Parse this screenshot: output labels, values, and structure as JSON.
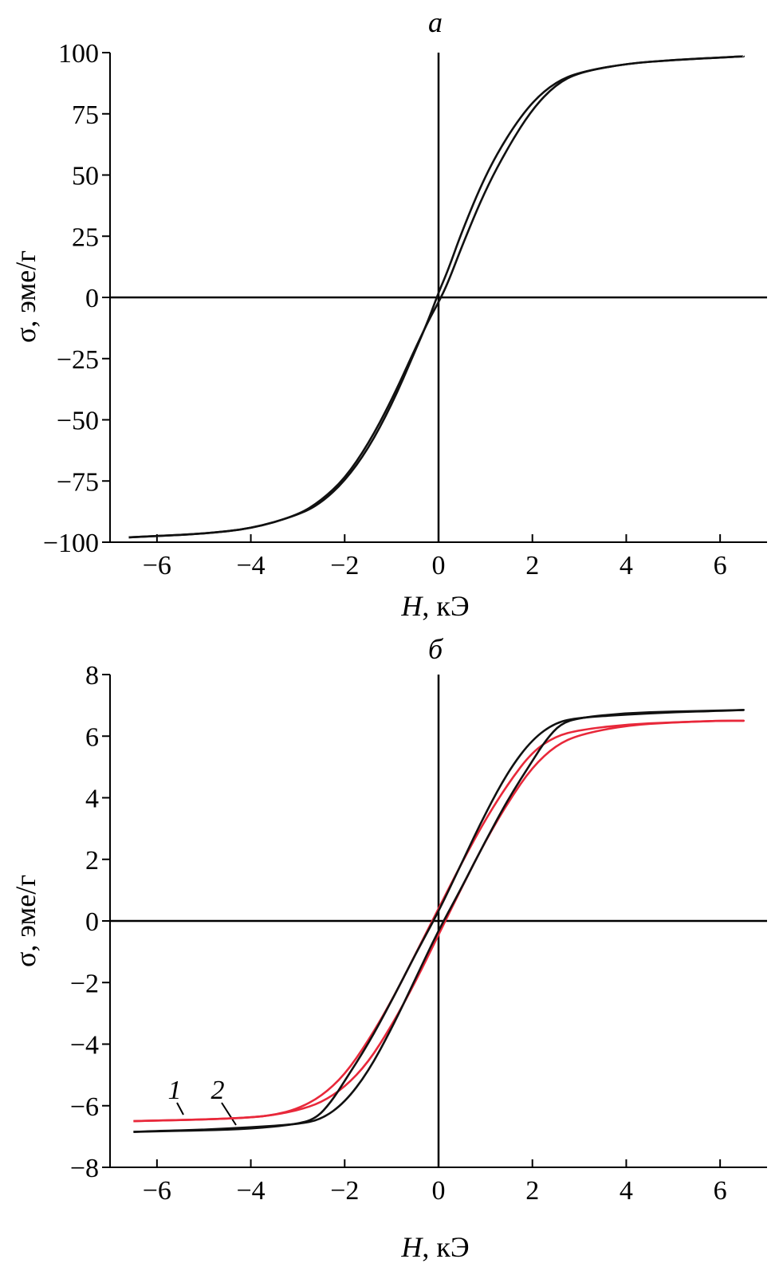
{
  "chart_data": [
    {
      "type": "line",
      "panel_label": "a",
      "xlabel_var": "H",
      "xlabel_unit": ", кЭ",
      "ylabel": "σ, эме/г",
      "xlim": [
        -7,
        7
      ],
      "ylim": [
        -100,
        100
      ],
      "xticks": [
        -6,
        -4,
        -2,
        0,
        2,
        4,
        6
      ],
      "yticks": [
        100,
        75,
        50,
        25,
        0,
        -25,
        -50,
        -75,
        -100
      ],
      "xtick_labels": [
        "−6",
        "−4",
        "−2",
        "0",
        "2",
        "4",
        "6"
      ],
      "ytick_labels": [
        "100",
        "75",
        "50",
        "25",
        "0",
        "−25",
        "−50",
        "−75",
        "−100"
      ],
      "series": [
        {
          "color": "#111111",
          "x": [
            -6.6,
            -6.0,
            -5.0,
            -4.0,
            -3.0,
            -2.5,
            -2.0,
            -1.5,
            -1.0,
            -0.5,
            -0.2,
            0.0,
            0.2,
            0.5,
            1.0,
            1.5,
            2.0,
            2.5,
            3.0,
            4.0,
            5.0,
            6.0,
            6.5
          ],
          "y": [
            -98,
            -97.5,
            -96.5,
            -94.5,
            -89,
            -84,
            -75,
            -62,
            -44,
            -22,
            -8.5,
            2,
            11,
            27,
            50,
            67,
            80,
            88,
            92,
            95.5,
            97,
            98,
            98.5
          ]
        },
        {
          "color": "#111111",
          "x": [
            -6.6,
            -6.0,
            -5.0,
            -4.0,
            -3.0,
            -2.5,
            -2.0,
            -1.5,
            -1.0,
            -0.5,
            -0.2,
            0.0,
            0.2,
            0.5,
            1.0,
            1.5,
            2.0,
            2.5,
            3.0,
            4.0,
            5.0,
            6.0,
            6.5
          ],
          "y": [
            -98,
            -97.5,
            -96.5,
            -94.5,
            -89,
            -83,
            -74,
            -60,
            -42,
            -21,
            -9,
            -2,
            6,
            21,
            44,
            62,
            77,
            87,
            92,
            95.5,
            97,
            98,
            98.5
          ]
        }
      ]
    },
    {
      "type": "line",
      "panel_label": "б",
      "xlabel_var": "H",
      "xlabel_unit": ", кЭ",
      "ylabel": "σ, эме/г",
      "xlim": [
        -7,
        7
      ],
      "ylim": [
        -8,
        8
      ],
      "xticks": [
        -6,
        -4,
        -2,
        0,
        2,
        4,
        6
      ],
      "yticks": [
        8,
        6,
        4,
        2,
        0,
        -2,
        -4,
        -6,
        -8
      ],
      "xtick_labels": [
        "−6",
        "−4",
        "−2",
        "0",
        "2",
        "4",
        "6"
      ],
      "ytick_labels": [
        "8",
        "6",
        "4",
        "2",
        "0",
        "−2",
        "−4",
        "−6",
        "−8"
      ],
      "series_labels": [
        "1",
        "2"
      ],
      "series": [
        {
          "color": "#e8283a",
          "x": [
            -6.5,
            -6.0,
            -5.0,
            -4.0,
            -3.5,
            -3.0,
            -2.5,
            -2.0,
            -1.5,
            -1.0,
            -0.5,
            0.0,
            0.5,
            1.0,
            1.5,
            2.0,
            2.5,
            3.0,
            4.0,
            5.0,
            6.0,
            6.5
          ],
          "y": [
            -6.5,
            -6.48,
            -6.45,
            -6.38,
            -6.3,
            -6.1,
            -5.7,
            -5.0,
            -3.9,
            -2.6,
            -1.1,
            0.4,
            1.9,
            3.3,
            4.5,
            5.5,
            6.0,
            6.2,
            6.38,
            6.45,
            6.5,
            6.5
          ]
        },
        {
          "color": "#e8283a",
          "x": [
            -6.5,
            -6.0,
            -5.0,
            -4.0,
            -3.5,
            -3.0,
            -2.5,
            -2.0,
            -1.5,
            -1.0,
            -0.5,
            0.0,
            0.5,
            1.0,
            1.5,
            2.0,
            2.5,
            3.0,
            4.0,
            5.0,
            6.0,
            6.5
          ],
          "y": [
            -6.5,
            -6.48,
            -6.45,
            -6.38,
            -6.3,
            -6.15,
            -5.9,
            -5.4,
            -4.6,
            -3.4,
            -2.0,
            -0.45,
            1.1,
            2.6,
            3.9,
            5.0,
            5.7,
            6.05,
            6.35,
            6.45,
            6.5,
            6.5
          ]
        },
        {
          "color": "#111111",
          "x": [
            -6.5,
            -6.0,
            -5.0,
            -4.0,
            -3.0,
            -2.6,
            -2.3,
            -2.0,
            -1.5,
            -1.0,
            -0.5,
            0.0,
            0.5,
            1.0,
            1.5,
            2.0,
            2.5,
            3.0,
            4.0,
            5.0,
            6.0,
            6.5
          ],
          "y": [
            -6.85,
            -6.83,
            -6.8,
            -6.75,
            -6.6,
            -6.4,
            -5.9,
            -5.2,
            -4.0,
            -2.6,
            -1.1,
            0.3,
            1.9,
            3.5,
            4.9,
            5.9,
            6.45,
            6.6,
            6.7,
            6.78,
            6.82,
            6.85
          ]
        },
        {
          "color": "#111111",
          "x": [
            -6.5,
            -6.0,
            -5.0,
            -4.0,
            -3.0,
            -2.5,
            -2.0,
            -1.5,
            -1.0,
            -0.5,
            0.0,
            0.5,
            1.0,
            1.5,
            2.0,
            2.3,
            2.6,
            3.0,
            4.0,
            5.0,
            6.0,
            6.5
          ],
          "y": [
            -6.85,
            -6.82,
            -6.78,
            -6.7,
            -6.6,
            -6.45,
            -5.9,
            -4.9,
            -3.5,
            -1.9,
            -0.3,
            1.1,
            2.6,
            4.0,
            5.2,
            5.9,
            6.4,
            6.6,
            6.75,
            6.8,
            6.83,
            6.85
          ]
        }
      ]
    }
  ]
}
